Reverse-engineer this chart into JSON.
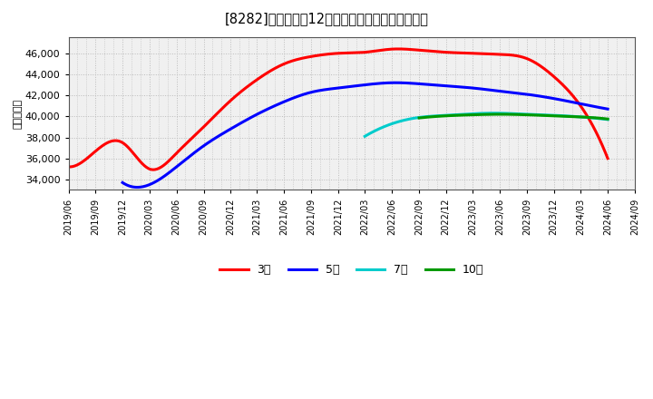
{
  "title": "[8282]　経常利益12か月移動合計の平均値の推移",
  "ylabel": "（百万円）",
  "background_color": "#ffffff",
  "plot_bg_color": "#f0f0f0",
  "grid_color": "#bbbbbb",
  "ylim": [
    33000,
    47500
  ],
  "yticks": [
    34000,
    36000,
    38000,
    40000,
    42000,
    44000,
    46000
  ],
  "series": {
    "3年": {
      "color": "#ff0000",
      "x": [
        "2019/06",
        "2019/09",
        "2019/12",
        "2020/03",
        "2020/06",
        "2020/09",
        "2020/12",
        "2021/03",
        "2021/06",
        "2021/09",
        "2021/12",
        "2022/03",
        "2022/06",
        "2022/09",
        "2022/12",
        "2023/03",
        "2023/06",
        "2023/09",
        "2023/12",
        "2024/03",
        "2024/06"
      ],
      "y": [
        35200,
        36700,
        37500,
        35000,
        36500,
        39000,
        41500,
        43500,
        45000,
        45700,
        46000,
        46100,
        46400,
        46300,
        46100,
        46000,
        45900,
        45500,
        43800,
        41000,
        36000
      ]
    },
    "5年": {
      "color": "#0000ff",
      "x": [
        "2019/12",
        "2020/03",
        "2020/06",
        "2020/09",
        "2020/12",
        "2021/03",
        "2021/06",
        "2021/09",
        "2021/12",
        "2022/03",
        "2022/06",
        "2022/09",
        "2022/12",
        "2023/03",
        "2023/06",
        "2023/09",
        "2023/12",
        "2024/03",
        "2024/06"
      ],
      "y": [
        33700,
        33500,
        35200,
        37200,
        38800,
        40200,
        41400,
        42300,
        42700,
        43000,
        43200,
        43100,
        42900,
        42700,
        42400,
        42100,
        41700,
        41200,
        40700
      ]
    },
    "7年": {
      "color": "#00cccc",
      "x": [
        "2022/03",
        "2022/06",
        "2022/09",
        "2022/12",
        "2023/03",
        "2023/06",
        "2023/09",
        "2023/12",
        "2024/03",
        "2024/06"
      ],
      "y": [
        38100,
        39300,
        39900,
        40100,
        40250,
        40300,
        40200,
        40100,
        39950,
        39700
      ]
    },
    "10年": {
      "color": "#009900",
      "x": [
        "2022/09",
        "2022/12",
        "2023/03",
        "2023/06",
        "2023/09",
        "2023/12",
        "2024/03",
        "2024/06"
      ],
      "y": [
        39850,
        40050,
        40150,
        40200,
        40150,
        40050,
        39950,
        39750
      ]
    }
  },
  "xticks": [
    "2019/06",
    "2019/09",
    "2019/12",
    "2020/03",
    "2020/06",
    "2020/09",
    "2020/12",
    "2021/03",
    "2021/06",
    "2021/09",
    "2021/12",
    "2022/03",
    "2022/06",
    "2022/09",
    "2022/12",
    "2023/03",
    "2023/06",
    "2023/09",
    "2023/12",
    "2024/03",
    "2024/06",
    "2024/09"
  ],
  "legend_order": [
    "3年",
    "5年",
    "7年",
    "10年"
  ],
  "legend_labels": [
    "3年",
    "5年",
    "7年",
    "10年"
  ]
}
